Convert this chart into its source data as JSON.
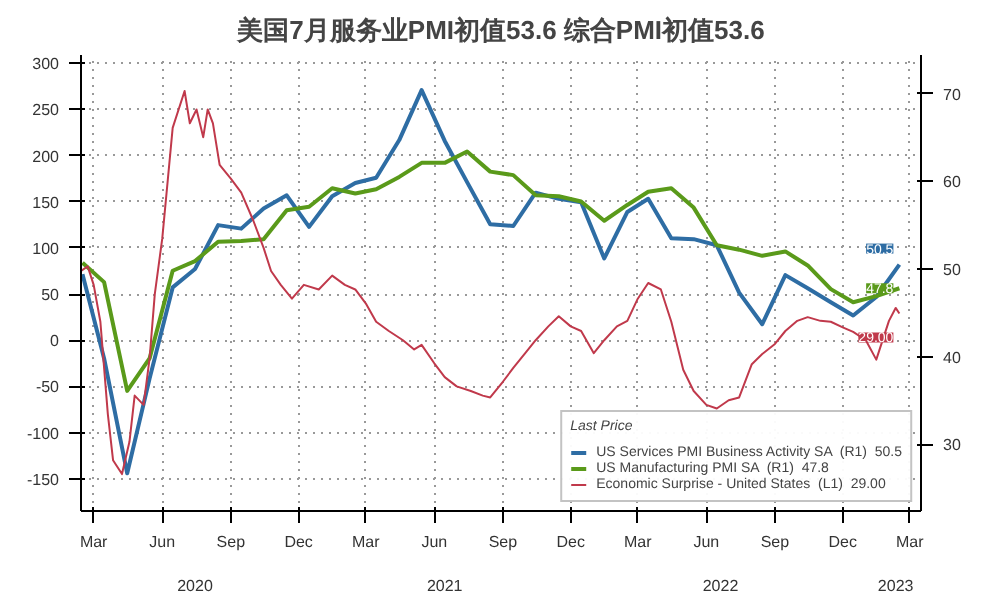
{
  "chart_data": {
    "type": "line",
    "title": "美国7月服务业PMI初值53.6 综合PMI初值53.6",
    "legend_title": "Last Price",
    "xlim": [
      "2020-02-13",
      "2023-03-16"
    ],
    "xticks": [
      {
        "value": "2020-03-01",
        "label": "Mar"
      },
      {
        "value": "2020-06-01",
        "label": "Jun"
      },
      {
        "value": "2020-09-01",
        "label": "Sep"
      },
      {
        "value": "2020-12-01",
        "label": "Dec"
      },
      {
        "value": "2021-03-01",
        "label": "Mar"
      },
      {
        "value": "2021-06-01",
        "label": "Jun"
      },
      {
        "value": "2021-09-01",
        "label": "Sep"
      },
      {
        "value": "2021-12-01",
        "label": "Dec"
      },
      {
        "value": "2022-03-01",
        "label": "Mar"
      },
      {
        "value": "2022-06-01",
        "label": "Jun"
      },
      {
        "value": "2022-09-01",
        "label": "Sep"
      },
      {
        "value": "2022-12-01",
        "label": "Dec"
      },
      {
        "value": "2023-03-01",
        "label": "Mar"
      }
    ],
    "x2lim": [
      "2020-02-13",
      "2023-03-16"
    ],
    "x2ticks": [
      {
        "value": "2020-07-15",
        "label": "2020"
      },
      {
        "value": "2021-06-15",
        "label": "2021"
      },
      {
        "value": "2022-06-20",
        "label": "2022"
      },
      {
        "value": "2023-02-10",
        "label": "2023"
      }
    ],
    "ylim": [
      -185,
      309
    ],
    "yticks": [
      -150,
      -100,
      -50,
      0,
      50,
      100,
      150,
      200,
      250,
      300
    ],
    "y2lim": [
      22.4,
      74.4
    ],
    "y2ticks": [
      30,
      40,
      50,
      60,
      70
    ],
    "grid": true,
    "legend": "bottom right",
    "series": [
      {
        "name": "US Services PMI Business Activity SA  (R1)  50.5",
        "color": "#2e6da4",
        "axis": "y2",
        "x": [
          "2020-02-15",
          "2020-03-15",
          "2020-04-15",
          "2020-05-15",
          "2020-06-15",
          "2020-07-15",
          "2020-08-15",
          "2020-09-15",
          "2020-10-15",
          "2020-11-15",
          "2020-12-15",
          "2021-01-15",
          "2021-02-15",
          "2021-03-15",
          "2021-04-15",
          "2021-05-15",
          "2021-06-15",
          "2021-07-15",
          "2021-08-15",
          "2021-09-15",
          "2021-10-15",
          "2021-11-15",
          "2021-12-15",
          "2022-01-15",
          "2022-02-15",
          "2022-03-15",
          "2022-04-15",
          "2022-05-15",
          "2022-06-15",
          "2022-07-15",
          "2022-08-15",
          "2022-09-15",
          "2022-10-15",
          "2022-11-15",
          "2022-12-15",
          "2023-01-15",
          "2023-02-15"
        ],
        "values": [
          49.4,
          39.8,
          26.7,
          37.5,
          47.9,
          50.0,
          55.0,
          54.6,
          56.9,
          58.4,
          54.8,
          58.3,
          59.8,
          60.4,
          64.7,
          70.4,
          64.6,
          59.9,
          55.1,
          54.9,
          58.7,
          58.0,
          57.6,
          51.2,
          56.5,
          58.0,
          53.5,
          53.4,
          52.7,
          47.3,
          43.7,
          49.3,
          47.8,
          46.2,
          44.7,
          46.8,
          50.5
        ],
        "value_labels": [
          null,
          null,
          null,
          null,
          null,
          null,
          null,
          null,
          null,
          null,
          null,
          null,
          null,
          null,
          null,
          null,
          null,
          null,
          null,
          null,
          null,
          null,
          null,
          null,
          null,
          null,
          null,
          null,
          null,
          null,
          null,
          null,
          null,
          null,
          null,
          null,
          "50.5"
        ]
      },
      {
        "name": "US Manufacturing PMI SA  (R1)  47.8",
        "color": "#5a9a1a",
        "axis": "y2",
        "x": [
          "2020-02-15",
          "2020-03-15",
          "2020-04-15",
          "2020-05-15",
          "2020-06-15",
          "2020-07-15",
          "2020-08-15",
          "2020-09-15",
          "2020-10-15",
          "2020-11-15",
          "2020-12-15",
          "2021-01-15",
          "2021-02-15",
          "2021-03-15",
          "2021-04-15",
          "2021-05-15",
          "2021-06-15",
          "2021-07-15",
          "2021-08-15",
          "2021-09-15",
          "2021-10-15",
          "2021-11-15",
          "2021-12-15",
          "2022-01-15",
          "2022-02-15",
          "2022-03-15",
          "2022-04-15",
          "2022-05-15",
          "2022-06-15",
          "2022-07-15",
          "2022-08-15",
          "2022-09-15",
          "2022-10-15",
          "2022-11-15",
          "2022-12-15",
          "2023-01-15",
          "2023-02-15"
        ],
        "values": [
          50.7,
          48.5,
          36.1,
          39.8,
          49.8,
          50.9,
          53.1,
          53.2,
          53.4,
          56.7,
          57.1,
          59.2,
          58.6,
          59.1,
          60.5,
          62.1,
          62.1,
          63.4,
          61.1,
          60.7,
          58.4,
          58.3,
          57.7,
          55.5,
          57.3,
          58.8,
          59.2,
          57.0,
          52.7,
          52.2,
          51.5,
          52.0,
          50.4,
          47.7,
          46.2,
          46.9,
          47.8
        ],
        "value_labels": [
          null,
          null,
          null,
          null,
          null,
          null,
          null,
          null,
          null,
          null,
          null,
          null,
          null,
          null,
          null,
          null,
          null,
          null,
          null,
          null,
          null,
          null,
          null,
          null,
          null,
          null,
          null,
          null,
          null,
          null,
          null,
          null,
          null,
          null,
          null,
          null,
          "47.8"
        ]
      },
      {
        "name": "Economic Surprise - United States  (L1)  29.00",
        "color": "#c0394b",
        "x": [
          "2020-02-13",
          "2020-02-22",
          "2020-03-01",
          "2020-03-10",
          "2020-03-20",
          "2020-03-27",
          "2020-04-08",
          "2020-04-18",
          "2020-04-25",
          "2020-05-07",
          "2020-05-15",
          "2020-05-22",
          "2020-06-01",
          "2020-06-08",
          "2020-06-15",
          "2020-07-01",
          "2020-07-08",
          "2020-07-17",
          "2020-07-26",
          "2020-08-01",
          "2020-08-08",
          "2020-08-17",
          "2020-09-01",
          "2020-09-15",
          "2020-10-01",
          "2020-10-15",
          "2020-10-25",
          "2020-11-07",
          "2020-11-22",
          "2020-12-08",
          "2020-12-28",
          "2021-01-15",
          "2021-02-01",
          "2021-02-15",
          "2021-03-01",
          "2021-03-15",
          "2021-04-01",
          "2021-04-20",
          "2021-05-05",
          "2021-05-15",
          "2021-06-01",
          "2021-06-15",
          "2021-07-01",
          "2021-07-20",
          "2021-08-05",
          "2021-08-15",
          "2021-09-01",
          "2021-09-15",
          "2021-10-01",
          "2021-10-15",
          "2021-11-01",
          "2021-11-15",
          "2021-12-01",
          "2021-12-15",
          "2022-01-01",
          "2022-01-15",
          "2022-02-01",
          "2022-02-15",
          "2022-03-01",
          "2022-03-15",
          "2022-04-01",
          "2022-04-15",
          "2022-05-01",
          "2022-05-15",
          "2022-06-01",
          "2022-06-15",
          "2022-07-01",
          "2022-07-15",
          "2022-08-01",
          "2022-08-15",
          "2022-09-01",
          "2022-09-15",
          "2022-10-01",
          "2022-10-15",
          "2022-11-01",
          "2022-11-15",
          "2022-12-01",
          "2022-12-15",
          "2023-01-01",
          "2023-01-15",
          "2023-02-01",
          "2023-02-10",
          "2023-02-15"
        ],
        "values": [
          75,
          80,
          60,
          20,
          -80,
          -130,
          -145,
          -110,
          -60,
          -70,
          -20,
          50,
          110,
          170,
          230,
          270,
          235,
          250,
          220,
          250,
          235,
          190,
          175,
          160,
          130,
          100,
          75,
          60,
          45,
          60,
          55,
          70,
          60,
          55,
          40,
          20,
          10,
          0,
          -10,
          -5,
          -25,
          -40,
          -50,
          -55,
          -60,
          -62,
          -45,
          -30,
          -14,
          0,
          15,
          26,
          15,
          10,
          -14,
          0,
          15,
          21,
          45,
          62,
          55,
          20,
          -32,
          -55,
          -70,
          -74,
          -65,
          -62,
          -26,
          -15,
          -4,
          10,
          21,
          25,
          21,
          20,
          14,
          9,
          0,
          -21,
          21,
          35,
          29
        ],
        "value_labels": [
          null,
          null,
          null,
          null,
          null,
          null,
          null,
          null,
          null,
          null,
          null,
          null,
          null,
          null,
          null,
          null,
          null,
          null,
          null,
          null,
          null,
          null,
          null,
          null,
          null,
          null,
          null,
          null,
          null,
          null,
          null,
          null,
          null,
          null,
          null,
          null,
          null,
          null,
          null,
          null,
          null,
          null,
          null,
          null,
          null,
          null,
          null,
          null,
          null,
          null,
          null,
          null,
          null,
          null,
          null,
          null,
          null,
          null,
          null,
          null,
          null,
          null,
          null,
          null,
          null,
          null,
          null,
          null,
          null,
          null,
          null,
          null,
          null,
          null,
          null,
          null,
          null,
          null,
          null,
          null,
          null,
          null,
          "29.00"
        ]
      }
    ]
  }
}
